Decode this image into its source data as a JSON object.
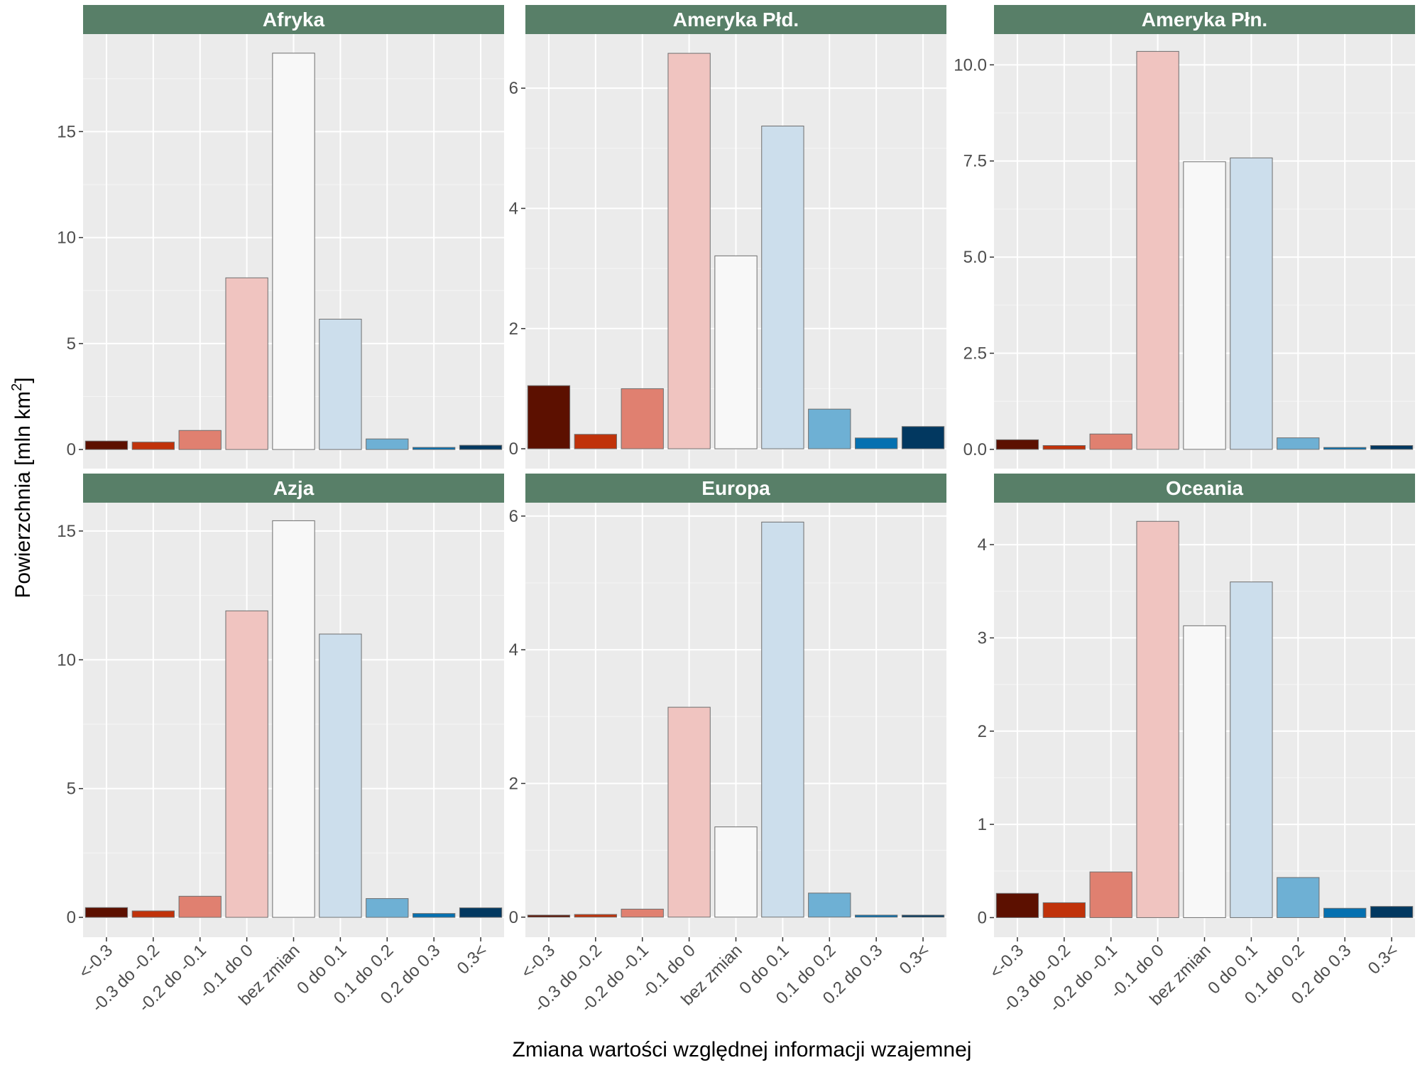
{
  "chart_data": {
    "type": "bar",
    "layout": "facet-grid-2x3",
    "xlabel": "Zmiana wartości względnej informacji wzajemnej",
    "ylabel": "Powierzchnia [mln km",
    "ylabel_sup": "2",
    "ylabel_close": "]",
    "categories": [
      "<-0.3",
      "-0.3 do -0.2",
      "-0.2 do -0.1",
      "-0.1 do 0",
      "bez zmian",
      "0 do 0.1",
      "0.1 do 0.2",
      "0.2 do 0.3",
      "0.3<"
    ],
    "category_colors": [
      "#5c1000",
      "#c0320a",
      "#e08070",
      "#f0c4c0",
      "#f8f8f8",
      "#ccdeec",
      "#6eb0d4",
      "#0570b0",
      "#023860"
    ],
    "panel_background": "#ebebeb",
    "strip_color": "#587f68",
    "grid": true,
    "panels": [
      {
        "title": "Afryka",
        "values": [
          0.4,
          0.35,
          0.9,
          8.1,
          18.7,
          6.15,
          0.5,
          0.1,
          0.2
        ],
        "ylim": [
          -0.9,
          19.6
        ],
        "yticks": [
          0,
          5,
          10,
          15
        ],
        "yticklabels": [
          "0",
          "5",
          "10",
          "15"
        ]
      },
      {
        "title": "Ameryka Płd.",
        "values": [
          1.05,
          0.24,
          1.0,
          6.58,
          3.21,
          5.37,
          0.66,
          0.18,
          0.37
        ],
        "ylim": [
          -0.33,
          6.9
        ],
        "yticks": [
          0,
          2,
          4,
          6
        ],
        "yticklabels": [
          "0",
          "2",
          "4",
          "6"
        ]
      },
      {
        "title": "Ameryka Płn.",
        "values": [
          0.25,
          0.1,
          0.4,
          10.35,
          7.48,
          7.58,
          0.3,
          0.05,
          0.1
        ],
        "ylim": [
          -0.5,
          10.8
        ],
        "yticks": [
          0,
          2.5,
          5,
          7.5,
          10
        ],
        "yticklabels": [
          "0.0",
          "2.5",
          "5.0",
          "7.5",
          "10.0"
        ]
      },
      {
        "title": "Azja",
        "values": [
          0.38,
          0.25,
          0.82,
          11.9,
          15.4,
          11.0,
          0.73,
          0.15,
          0.37
        ],
        "ylim": [
          -0.77,
          16.1
        ],
        "yticks": [
          0,
          5,
          10,
          15
        ],
        "yticklabels": [
          "0",
          "5",
          "10",
          "15"
        ]
      },
      {
        "title": "Europa",
        "values": [
          0.03,
          0.04,
          0.12,
          3.14,
          1.35,
          5.91,
          0.36,
          0.03,
          0.03
        ],
        "ylim": [
          -0.3,
          6.2
        ],
        "yticks": [
          0,
          2,
          4,
          6
        ],
        "yticklabels": [
          "0",
          "2",
          "4",
          "6"
        ]
      },
      {
        "title": "Oceania",
        "values": [
          0.26,
          0.16,
          0.49,
          4.25,
          3.13,
          3.6,
          0.43,
          0.1,
          0.12
        ],
        "ylim": [
          -0.21,
          4.45
        ],
        "yticks": [
          0,
          1,
          2,
          3,
          4
        ],
        "yticklabels": [
          "0",
          "1",
          "2",
          "3",
          "4"
        ]
      }
    ]
  }
}
